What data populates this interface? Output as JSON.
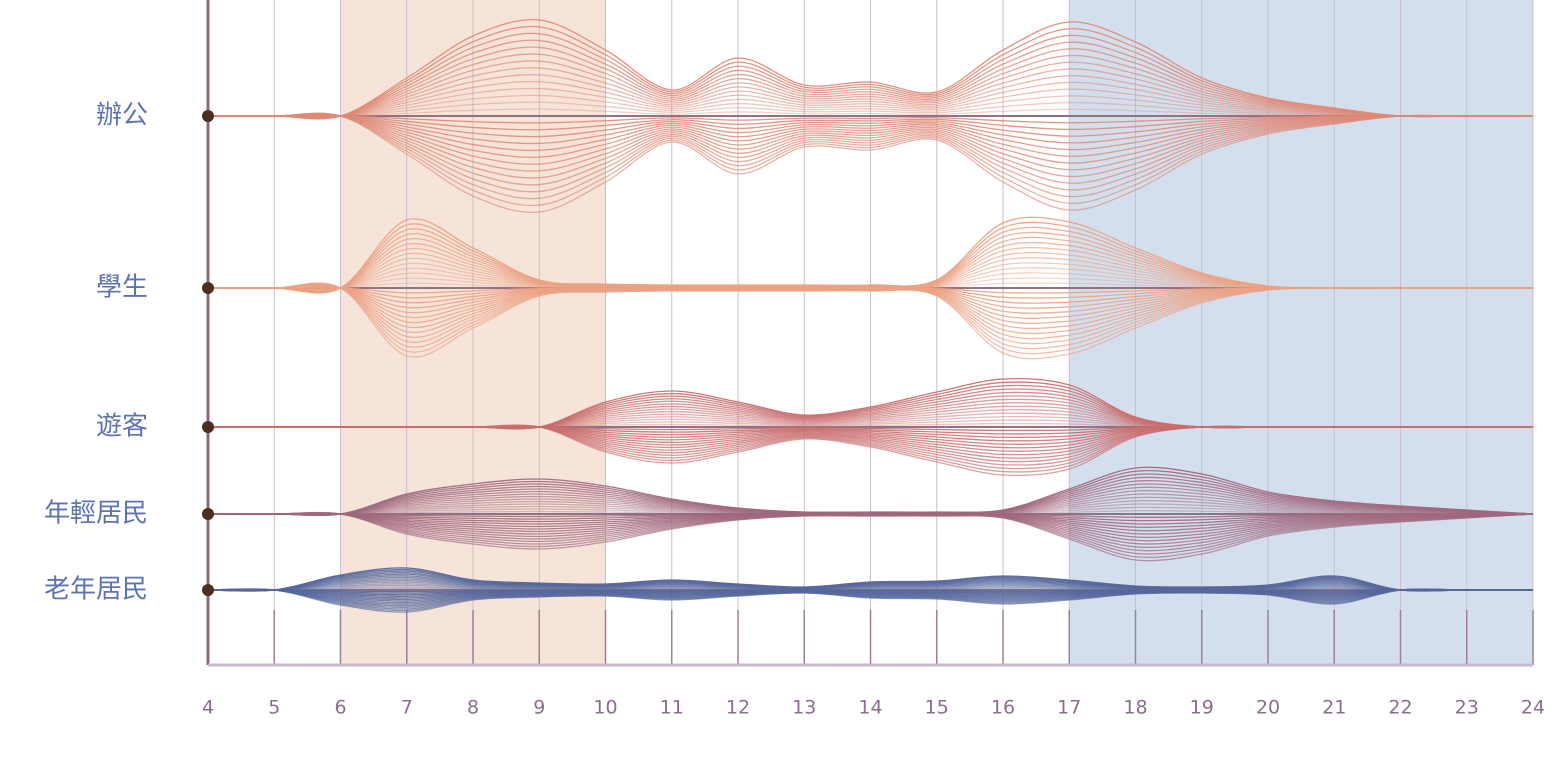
{
  "chart_data": {
    "type": "ribbon",
    "x": [
      4,
      5,
      6,
      7,
      8,
      9,
      10,
      11,
      12,
      13,
      14,
      15,
      16,
      17,
      18,
      19,
      20,
      21,
      22,
      23,
      24
    ],
    "xlim": [
      4,
      24
    ],
    "xticks": [
      4,
      5,
      6,
      7,
      8,
      9,
      10,
      11,
      12,
      13,
      14,
      15,
      16,
      17,
      18,
      19,
      20,
      21,
      22,
      23,
      24
    ],
    "highlights": [
      {
        "from": 6,
        "to": 10,
        "color": "#f7e4d9"
      },
      {
        "from": 17,
        "to": 24,
        "color": "#d4dfee"
      }
    ],
    "series": [
      {
        "name": "辦公",
        "color": "#df8a78",
        "values": [
          0,
          0,
          0,
          38,
          80,
          96,
          66,
          26,
          58,
          31,
          34,
          24,
          66,
          94,
          74,
          38,
          18,
          8,
          0,
          0,
          0
        ]
      },
      {
        "name": "學生",
        "color": "#eba284",
        "values": [
          0,
          0,
          0,
          68,
          40,
          8,
          4,
          3,
          3,
          3,
          3,
          8,
          65,
          66,
          40,
          15,
          2,
          0,
          0,
          0,
          0
        ]
      },
      {
        "name": "遊客",
        "color": "#c96e6e",
        "values": [
          0,
          0,
          0,
          0,
          0,
          0,
          25,
          36,
          25,
          12,
          20,
          35,
          48,
          42,
          10,
          0,
          0,
          0,
          0,
          0,
          0
        ]
      },
      {
        "name": "年輕居民",
        "color": "#a0687e",
        "values": [
          0,
          0,
          0,
          20,
          30,
          35,
          28,
          15,
          6,
          2,
          2,
          2,
          4,
          25,
          46,
          40,
          22,
          13,
          8,
          4,
          0
        ]
      },
      {
        "name": "老年居民",
        "color": "#56679c",
        "values": [
          0,
          0,
          15,
          22,
          10,
          7,
          6,
          10,
          6,
          3,
          8,
          9,
          14,
          10,
          4,
          3,
          5,
          14,
          0,
          0,
          0
        ]
      }
    ]
  }
}
